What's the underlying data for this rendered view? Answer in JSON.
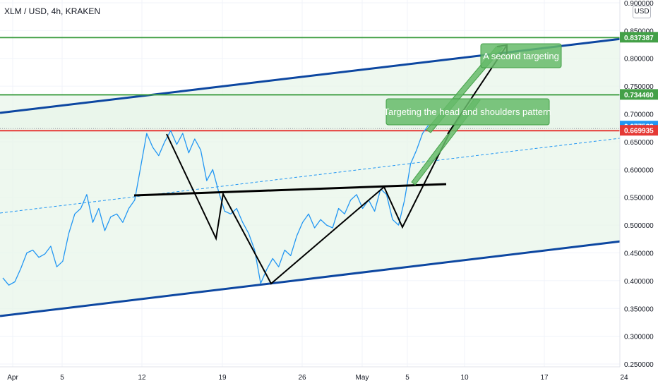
{
  "header": {
    "title": "XLM / USD, 4h, KRAKEN",
    "currency_button": "USD"
  },
  "colors": {
    "price_line": "#2196f3",
    "channel": "#0d47a1",
    "channel_fill": "#e8f5e9",
    "target_line": "#43a047",
    "red_line": "#e53935",
    "neckline": "#000000",
    "callout_fill": "#66bb6a",
    "grid": "#f0f3fa"
  },
  "chart_data": {
    "type": "line",
    "title": "XLM / USD, 4h, KRAKEN",
    "x_ticks": [
      "Apr",
      "5",
      "12",
      "19",
      "26",
      "May",
      "5",
      "10",
      "17",
      "24"
    ],
    "y_ticks": [
      "0.250000",
      "0.300000",
      "0.350000",
      "0.400000",
      "0.450000",
      "0.500000",
      "0.550000",
      "0.600000",
      "0.650000",
      "0.700000",
      "0.750000",
      "0.800000",
      "0.850000",
      "0.900000"
    ],
    "ylim": [
      0.245,
      0.905
    ],
    "series": [
      {
        "values": [
          0.405,
          0.392,
          0.398,
          0.422,
          0.45,
          0.455,
          0.442,
          0.448,
          0.462,
          0.425,
          0.435,
          0.485,
          0.52,
          0.53,
          0.555,
          0.505,
          0.53,
          0.49,
          0.515,
          0.52,
          0.505,
          0.53,
          0.545,
          0.605,
          0.665,
          0.64,
          0.625,
          0.65,
          0.67,
          0.645,
          0.665,
          0.63,
          0.655,
          0.635,
          0.58,
          0.6,
          0.56,
          0.525,
          0.52,
          0.53,
          0.505,
          0.485,
          0.455,
          0.395,
          0.42,
          0.44,
          0.425,
          0.455,
          0.445,
          0.48,
          0.505,
          0.52,
          0.495,
          0.51,
          0.5,
          0.495,
          0.53,
          0.52,
          0.545,
          0.555,
          0.53,
          0.545,
          0.525,
          0.565,
          0.555,
          0.51,
          0.5,
          0.545,
          0.61,
          0.635,
          0.665,
          0.68
        ]
      }
    ],
    "price_labels": [
      {
        "value": 0.837387,
        "text": "0.837387",
        "color": "#43a047"
      },
      {
        "value": 0.73446,
        "text": "0.734460",
        "color": "#43a047"
      },
      {
        "value": 0.677523,
        "text": "0.677523",
        "color": "#2196f3"
      },
      {
        "value": 0.669935,
        "text": "0.669935",
        "color": "#e53935"
      }
    ],
    "horizontal_lines": [
      {
        "value": 0.837387,
        "color": "#43a047"
      },
      {
        "value": 0.73446,
        "color": "#43a047"
      },
      {
        "value": 0.669935,
        "color": "#e53935"
      }
    ],
    "annotations": [
      "A second targeting",
      "Targeting the head and shoulders pattern"
    ],
    "grid": true
  }
}
